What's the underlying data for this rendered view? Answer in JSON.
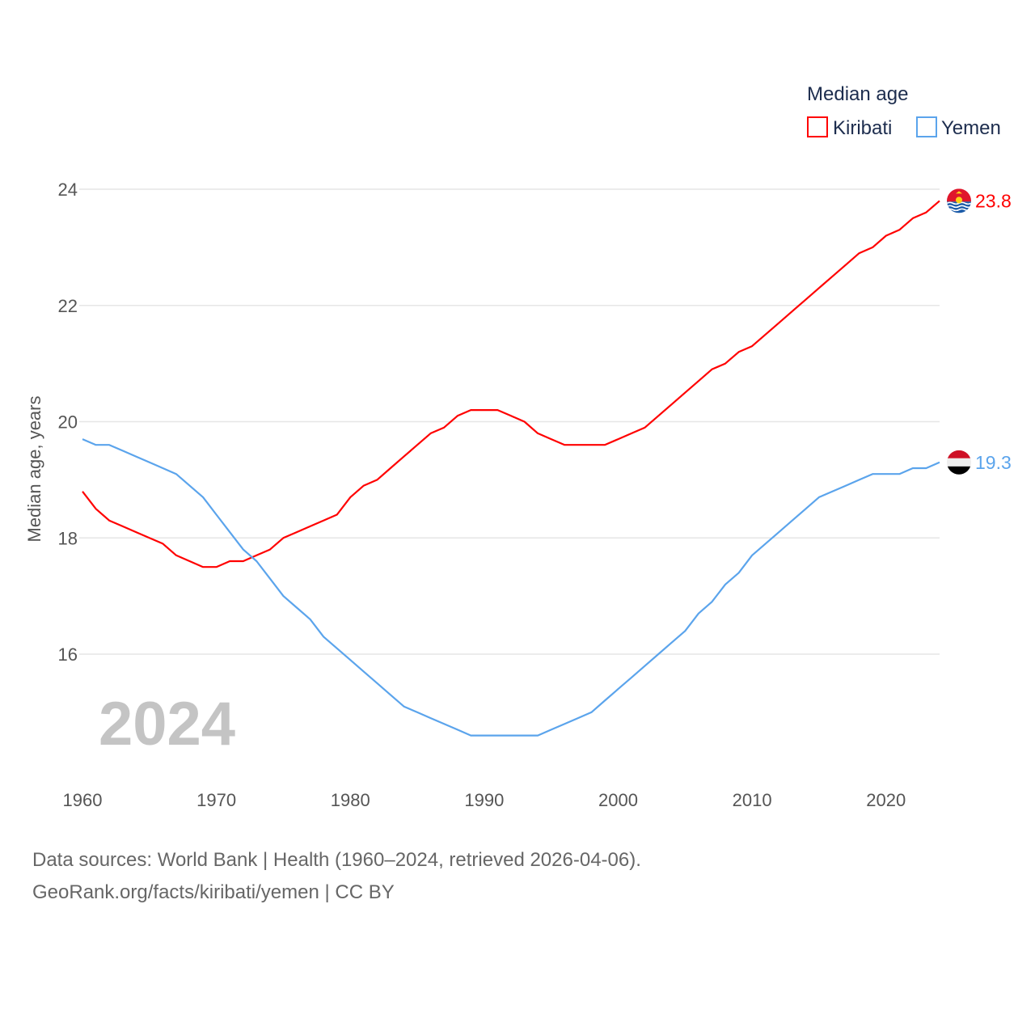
{
  "chart_data": {
    "type": "line",
    "title": "Median age",
    "xlabel": "",
    "ylabel": "Median age, years",
    "xlim": [
      1960,
      2024
    ],
    "ylim": [
      14,
      24.5
    ],
    "yticks": [
      16,
      18,
      20,
      22,
      24
    ],
    "xticks": [
      1960,
      1970,
      1980,
      1990,
      2000,
      2010,
      2020
    ],
    "grid": true,
    "legend_position": "top-right",
    "current_year_label": "2024",
    "x": [
      1960,
      1961,
      1962,
      1963,
      1964,
      1965,
      1966,
      1967,
      1968,
      1969,
      1970,
      1971,
      1972,
      1973,
      1974,
      1975,
      1976,
      1977,
      1978,
      1979,
      1980,
      1981,
      1982,
      1983,
      1984,
      1985,
      1986,
      1987,
      1988,
      1989,
      1990,
      1991,
      1992,
      1993,
      1994,
      1995,
      1996,
      1997,
      1998,
      1999,
      2000,
      2001,
      2002,
      2003,
      2004,
      2005,
      2006,
      2007,
      2008,
      2009,
      2010,
      2011,
      2012,
      2013,
      2014,
      2015,
      2016,
      2017,
      2018,
      2019,
      2020,
      2021,
      2022,
      2023,
      2024
    ],
    "series": [
      {
        "name": "Kiribati",
        "color": "#ff0000",
        "end_label": "23.8",
        "flag": "kiribati-flag",
        "values": [
          18.8,
          18.5,
          18.3,
          18.2,
          18.1,
          18.0,
          17.9,
          17.7,
          17.6,
          17.5,
          17.5,
          17.6,
          17.6,
          17.7,
          17.8,
          18.0,
          18.1,
          18.2,
          18.3,
          18.4,
          18.7,
          18.9,
          19.0,
          19.2,
          19.4,
          19.6,
          19.8,
          19.9,
          20.1,
          20.2,
          20.2,
          20.2,
          20.1,
          20.0,
          19.8,
          19.7,
          19.6,
          19.6,
          19.6,
          19.6,
          19.7,
          19.8,
          19.9,
          20.1,
          20.3,
          20.5,
          20.7,
          20.9,
          21.0,
          21.2,
          21.3,
          21.5,
          21.7,
          21.9,
          22.1,
          22.3,
          22.5,
          22.7,
          22.9,
          23.0,
          23.2,
          23.3,
          23.5,
          23.6,
          23.8
        ]
      },
      {
        "name": "Yemen",
        "color": "#5ba4ec",
        "end_label": "19.3",
        "flag": "yemen-flag",
        "values": [
          19.7,
          19.6,
          19.6,
          19.5,
          19.4,
          19.3,
          19.2,
          19.1,
          18.9,
          18.7,
          18.4,
          18.1,
          17.8,
          17.6,
          17.3,
          17.0,
          16.8,
          16.6,
          16.3,
          16.1,
          15.9,
          15.7,
          15.5,
          15.3,
          15.1,
          15.0,
          14.9,
          14.8,
          14.7,
          14.6,
          14.6,
          14.6,
          14.6,
          14.6,
          14.6,
          14.7,
          14.8,
          14.9,
          15.0,
          15.2,
          15.4,
          15.6,
          15.8,
          16.0,
          16.2,
          16.4,
          16.7,
          16.9,
          17.2,
          17.4,
          17.7,
          17.9,
          18.1,
          18.3,
          18.5,
          18.7,
          18.8,
          18.9,
          19.0,
          19.1,
          19.1,
          19.1,
          19.2,
          19.2,
          19.3
        ]
      }
    ]
  },
  "footer": {
    "line1": "Data sources: World Bank | Health (1960–2024, retrieved 2026-04-06).",
    "line2": "GeoRank.org/facts/kiribati/yemen | CC BY"
  }
}
